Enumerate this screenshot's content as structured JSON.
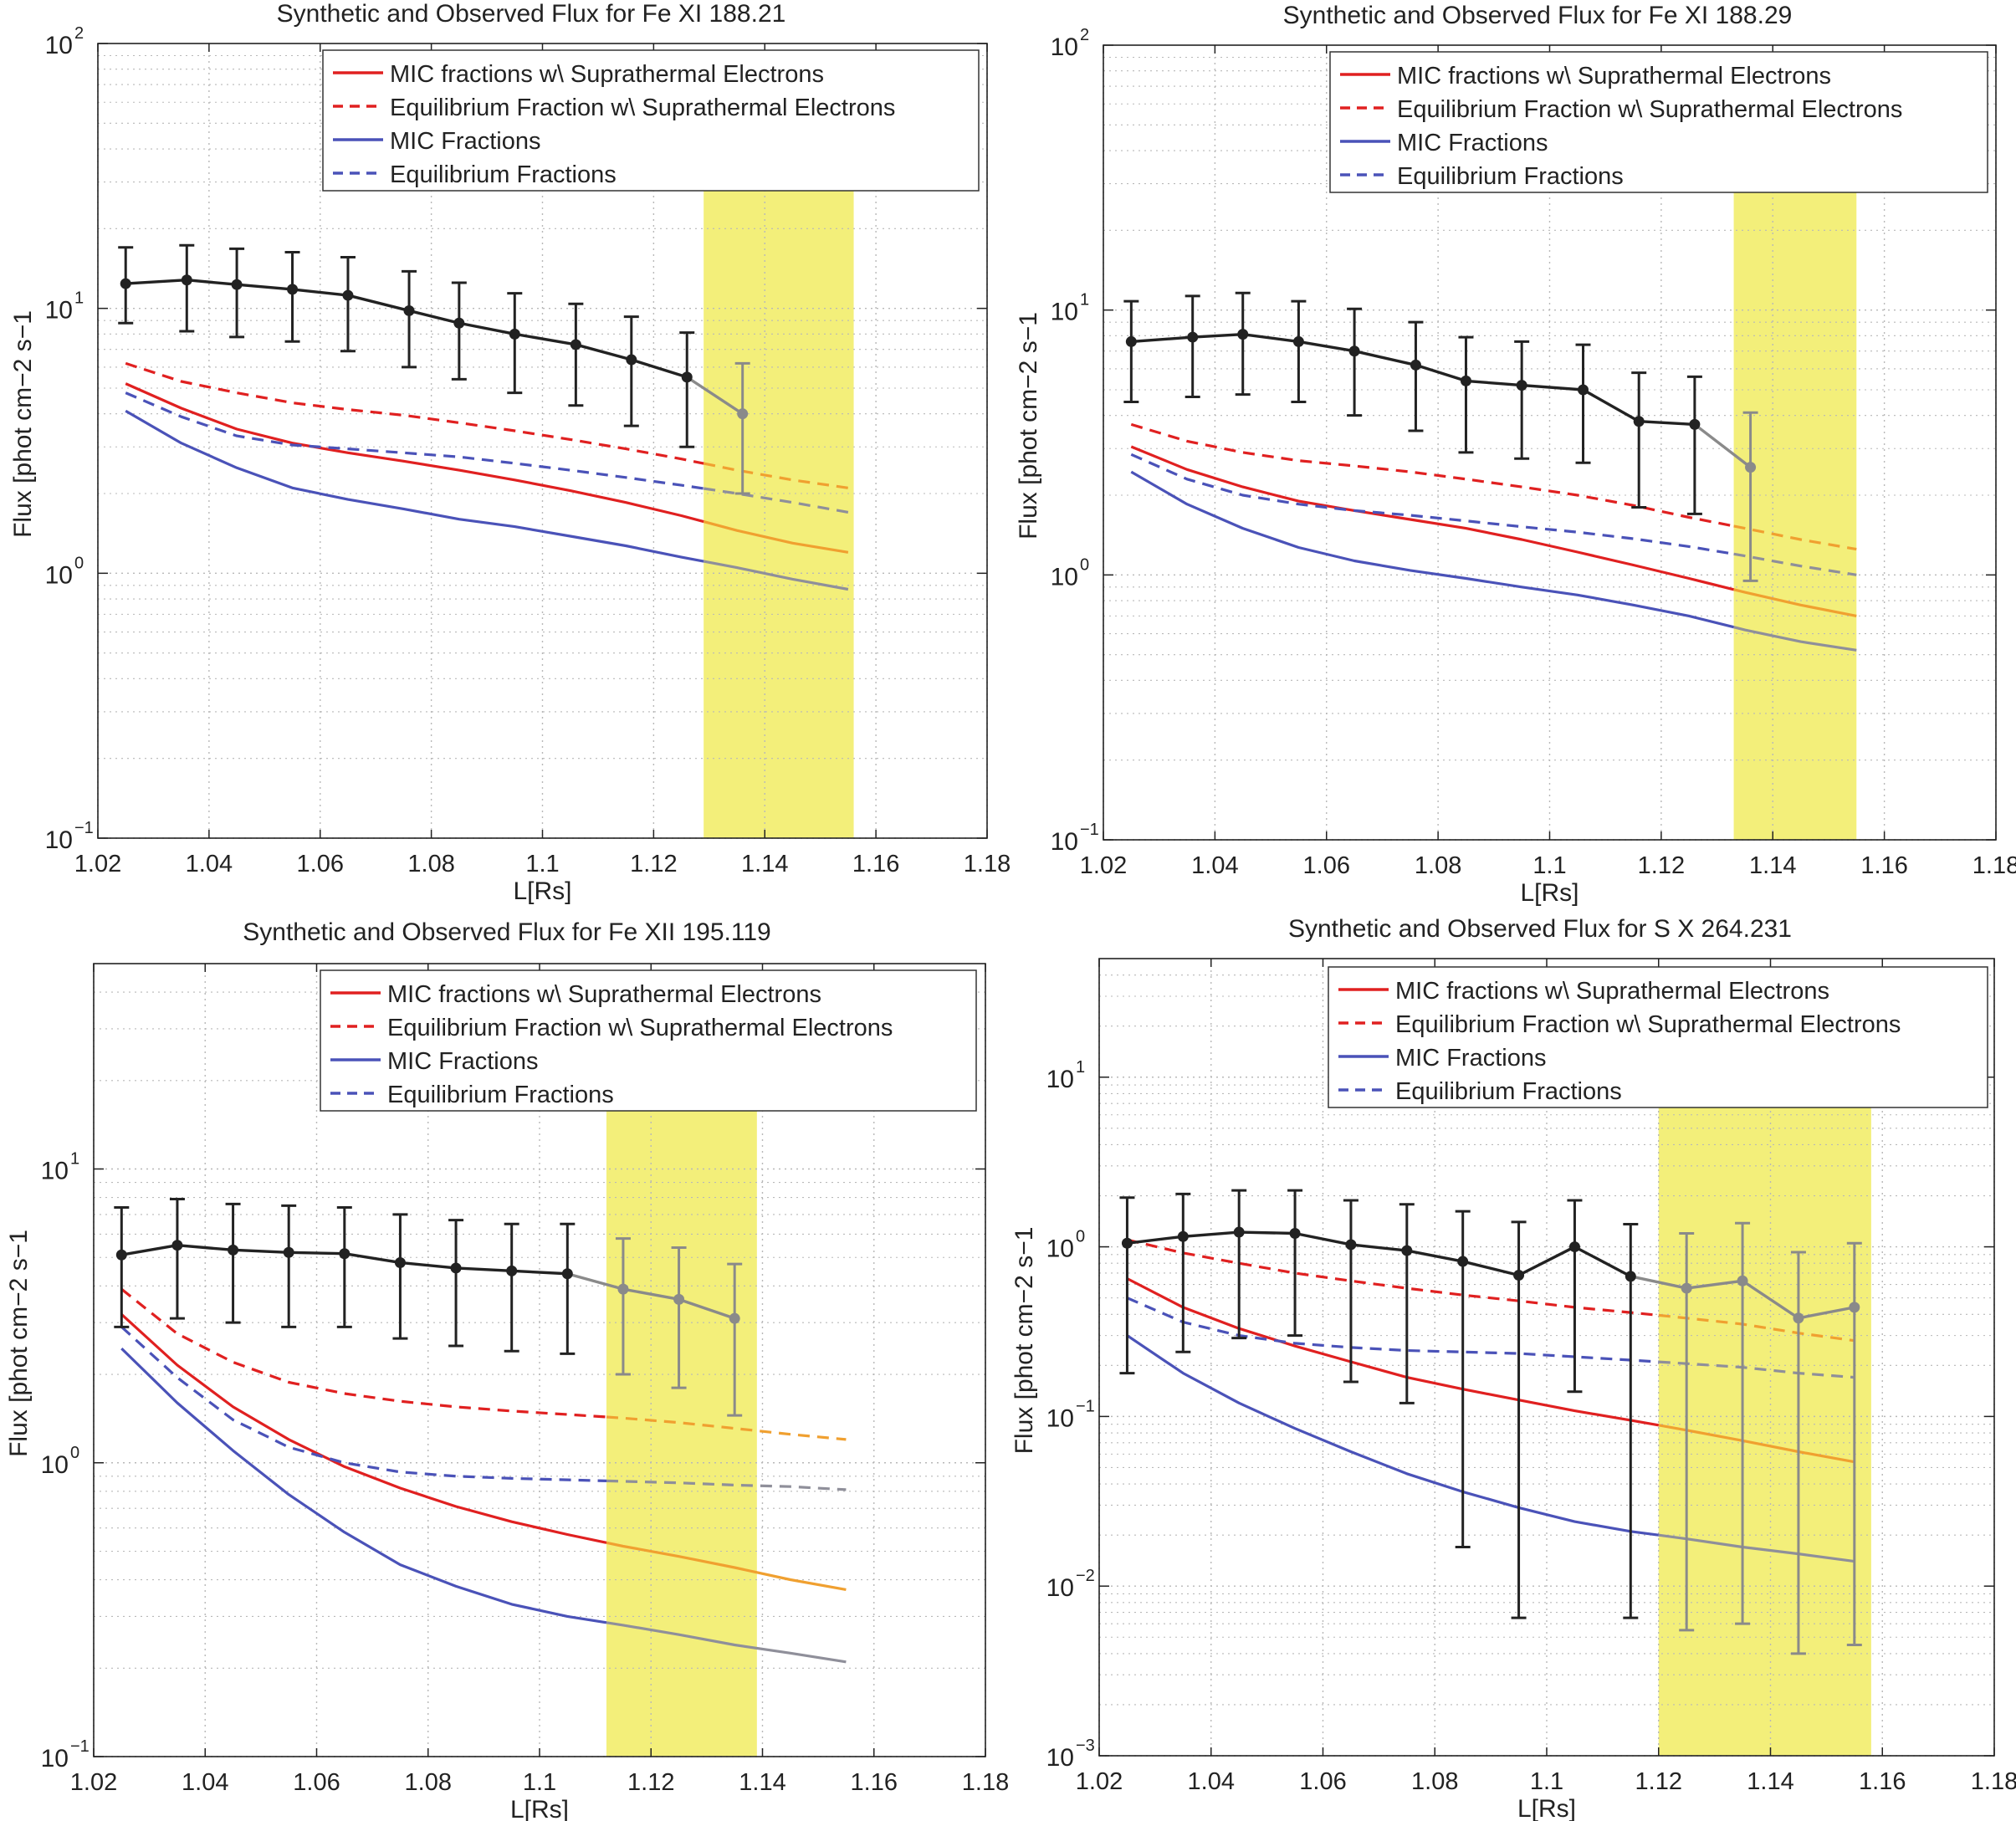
{
  "figure": {
    "legend": [
      {
        "label": "MIC fractions w\\ Suprathermal Electrons",
        "color": "#e02020",
        "dash": false
      },
      {
        "label": "Equilibrium Fraction w\\ Suprathermal Electrons",
        "color": "#e02020",
        "dash": true
      },
      {
        "label": "MIC Fractions",
        "color": "#4a52b8",
        "dash": false
      },
      {
        "label": "Equilibrium Fractions",
        "color": "#4a52b8",
        "dash": true
      }
    ],
    "colors": {
      "observed": "#222222",
      "observed_in_band": "#8a8a8a",
      "band": "#f3ef7a",
      "red_in_band": "#f0a030",
      "blue_in_band": "#8f8f9a",
      "grid": "#b8b8b8"
    }
  },
  "chart_data": [
    {
      "type": "line",
      "title": "Synthetic and Observed Flux for Fe XI 188.21",
      "xlabel": "L[Rs]",
      "ylabel": "Flux [phot cm−2 s−1",
      "yscale": "log",
      "xlim": [
        1.02,
        1.18
      ],
      "ylim": [
        0.1,
        100
      ],
      "xticks": [
        "1.02",
        "1.04",
        "1.06",
        "1.08",
        "1.1",
        "1.12",
        "1.14",
        "1.16",
        "1.18"
      ],
      "yticks": [
        {
          "base": "10",
          "exp": "−1",
          "value": 0.1
        },
        {
          "base": "10",
          "exp": "0",
          "value": 1
        },
        {
          "base": "10",
          "exp": "1",
          "value": 10
        },
        {
          "base": "10",
          "exp": "2",
          "value": 100
        }
      ],
      "highlight_band": [
        1.129,
        1.156
      ],
      "observed": {
        "x": [
          1.025,
          1.036,
          1.045,
          1.055,
          1.065,
          1.076,
          1.085,
          1.095,
          1.106,
          1.116,
          1.126,
          1.136
        ],
        "y": [
          12.4,
          12.8,
          12.3,
          11.8,
          11.2,
          9.8,
          8.8,
          8.0,
          7.3,
          6.4,
          5.5,
          4.0
        ],
        "lo": [
          8.8,
          8.2,
          7.8,
          7.5,
          6.9,
          6.0,
          5.4,
          4.8,
          4.3,
          3.6,
          3.0,
          2.0
        ],
        "hi": [
          17.0,
          17.3,
          16.8,
          16.3,
          15.6,
          13.8,
          12.5,
          11.4,
          10.4,
          9.3,
          8.1,
          6.2
        ]
      },
      "series": [
        {
          "name": "MIC fractions w\\ Suprathermal Electrons",
          "style": "solid",
          "color": "red",
          "x": [
            1.025,
            1.035,
            1.045,
            1.055,
            1.065,
            1.075,
            1.085,
            1.095,
            1.105,
            1.115,
            1.125,
            1.135,
            1.145,
            1.155
          ],
          "y": [
            5.2,
            4.2,
            3.5,
            3.1,
            2.85,
            2.65,
            2.45,
            2.25,
            2.05,
            1.85,
            1.65,
            1.45,
            1.3,
            1.2
          ]
        },
        {
          "name": "Equilibrium Fraction w\\ Suprathermal Electrons",
          "style": "dashed",
          "color": "red",
          "x": [
            1.025,
            1.035,
            1.045,
            1.055,
            1.065,
            1.075,
            1.085,
            1.095,
            1.105,
            1.115,
            1.125,
            1.135,
            1.145,
            1.155
          ],
          "y": [
            6.2,
            5.3,
            4.8,
            4.4,
            4.15,
            3.95,
            3.7,
            3.45,
            3.2,
            2.95,
            2.7,
            2.45,
            2.25,
            2.1
          ]
        },
        {
          "name": "MIC Fractions",
          "style": "solid",
          "color": "blue",
          "x": [
            1.025,
            1.035,
            1.045,
            1.055,
            1.065,
            1.075,
            1.085,
            1.095,
            1.105,
            1.115,
            1.125,
            1.135,
            1.145,
            1.155
          ],
          "y": [
            4.1,
            3.1,
            2.5,
            2.1,
            1.9,
            1.75,
            1.6,
            1.5,
            1.38,
            1.27,
            1.15,
            1.05,
            0.95,
            0.87
          ]
        },
        {
          "name": "Equilibrium Fractions",
          "style": "dashed",
          "color": "blue",
          "x": [
            1.025,
            1.035,
            1.045,
            1.055,
            1.065,
            1.075,
            1.085,
            1.095,
            1.105,
            1.115,
            1.125,
            1.135,
            1.145,
            1.155
          ],
          "y": [
            4.8,
            3.9,
            3.3,
            3.05,
            2.95,
            2.85,
            2.75,
            2.6,
            2.45,
            2.3,
            2.15,
            2.0,
            1.85,
            1.7
          ]
        }
      ]
    },
    {
      "type": "line",
      "title": "Synthetic and Observed Flux for Fe XI 188.29",
      "xlabel": "L[Rs]",
      "ylabel": "Flux [phot cm−2 s−1",
      "yscale": "log",
      "xlim": [
        1.02,
        1.18
      ],
      "ylim": [
        0.1,
        100
      ],
      "xticks": [
        "1.02",
        "1.04",
        "1.06",
        "1.08",
        "1.1",
        "1.12",
        "1.14",
        "1.16",
        "1.18"
      ],
      "yticks": [
        {
          "base": "10",
          "exp": "−1",
          "value": 0.1
        },
        {
          "base": "10",
          "exp": "0",
          "value": 1
        },
        {
          "base": "10",
          "exp": "1",
          "value": 10
        },
        {
          "base": "10",
          "exp": "2",
          "value": 100
        }
      ],
      "highlight_band": [
        1.133,
        1.155
      ],
      "observed": {
        "x": [
          1.025,
          1.036,
          1.045,
          1.055,
          1.065,
          1.076,
          1.085,
          1.095,
          1.106,
          1.116,
          1.126,
          1.136
        ],
        "y": [
          7.6,
          7.9,
          8.1,
          7.6,
          7.0,
          6.2,
          5.4,
          5.2,
          5.0,
          3.8,
          3.7,
          2.55
        ],
        "lo": [
          4.5,
          4.7,
          4.8,
          4.5,
          4.0,
          3.5,
          2.9,
          2.75,
          2.65,
          1.8,
          1.7,
          0.95
        ],
        "hi": [
          10.8,
          11.3,
          11.6,
          10.8,
          10.1,
          9.0,
          7.9,
          7.6,
          7.4,
          5.8,
          5.6,
          4.1
        ]
      },
      "series": [
        {
          "name": "MIC fractions w\\ Suprathermal Electrons",
          "style": "solid",
          "color": "red",
          "x": [
            1.025,
            1.035,
            1.045,
            1.055,
            1.065,
            1.075,
            1.085,
            1.095,
            1.105,
            1.115,
            1.125,
            1.135,
            1.145,
            1.155
          ],
          "y": [
            3.05,
            2.5,
            2.15,
            1.9,
            1.75,
            1.62,
            1.5,
            1.36,
            1.22,
            1.09,
            0.97,
            0.86,
            0.77,
            0.7
          ]
        },
        {
          "name": "Equilibrium Fraction w\\ Suprathermal Electrons",
          "style": "dashed",
          "color": "red",
          "x": [
            1.025,
            1.035,
            1.045,
            1.055,
            1.065,
            1.075,
            1.085,
            1.095,
            1.105,
            1.115,
            1.125,
            1.135,
            1.145,
            1.155
          ],
          "y": [
            3.7,
            3.2,
            2.9,
            2.7,
            2.58,
            2.45,
            2.3,
            2.15,
            2.0,
            1.83,
            1.65,
            1.5,
            1.36,
            1.25
          ]
        },
        {
          "name": "MIC Fractions",
          "style": "solid",
          "color": "blue",
          "x": [
            1.025,
            1.035,
            1.045,
            1.055,
            1.065,
            1.075,
            1.085,
            1.095,
            1.105,
            1.115,
            1.125,
            1.135,
            1.145,
            1.155
          ],
          "y": [
            2.45,
            1.85,
            1.5,
            1.27,
            1.13,
            1.04,
            0.97,
            0.9,
            0.84,
            0.77,
            0.7,
            0.62,
            0.56,
            0.52
          ]
        },
        {
          "name": "Equilibrium Fractions",
          "style": "dashed",
          "color": "blue",
          "x": [
            1.025,
            1.035,
            1.045,
            1.055,
            1.065,
            1.075,
            1.085,
            1.095,
            1.105,
            1.115,
            1.125,
            1.135,
            1.145,
            1.155
          ],
          "y": [
            2.85,
            2.3,
            2.0,
            1.85,
            1.75,
            1.68,
            1.6,
            1.52,
            1.45,
            1.37,
            1.28,
            1.18,
            1.08,
            1.0
          ]
        }
      ]
    },
    {
      "type": "line",
      "title": "Synthetic and Observed Flux for Fe XII 195.119",
      "xlabel": "L[Rs]",
      "ylabel": "Flux [phot cm−2 s−1",
      "yscale": "log",
      "xlim": [
        1.02,
        1.18
      ],
      "ylim": [
        0.1,
        50
      ],
      "xticks": [
        "1.02",
        "1.04",
        "1.06",
        "1.08",
        "1.1",
        "1.12",
        "1.14",
        "1.16",
        "1.18"
      ],
      "yticks": [
        {
          "base": "10",
          "exp": "−1",
          "value": 0.1
        },
        {
          "base": "10",
          "exp": "0",
          "value": 1
        },
        {
          "base": "10",
          "exp": "1",
          "value": 10
        }
      ],
      "highlight_band": [
        1.112,
        1.139
      ],
      "observed": {
        "x": [
          1.025,
          1.035,
          1.045,
          1.055,
          1.065,
          1.075,
          1.085,
          1.095,
          1.105,
          1.115,
          1.125,
          1.135
        ],
        "y": [
          5.1,
          5.5,
          5.3,
          5.2,
          5.15,
          4.8,
          4.6,
          4.5,
          4.4,
          3.9,
          3.6,
          3.1
        ],
        "lo": [
          2.9,
          3.1,
          3.0,
          2.9,
          2.9,
          2.65,
          2.5,
          2.4,
          2.35,
          2.0,
          1.8,
          1.45
        ],
        "hi": [
          7.4,
          7.9,
          7.6,
          7.5,
          7.4,
          7.0,
          6.7,
          6.5,
          6.5,
          5.8,
          5.4,
          4.75
        ]
      },
      "series": [
        {
          "name": "MIC fractions w\\ Suprathermal Electrons",
          "style": "solid",
          "color": "red",
          "x": [
            1.025,
            1.035,
            1.045,
            1.055,
            1.065,
            1.075,
            1.085,
            1.095,
            1.105,
            1.115,
            1.125,
            1.135,
            1.145,
            1.155
          ],
          "y": [
            3.2,
            2.15,
            1.55,
            1.2,
            0.97,
            0.82,
            0.71,
            0.63,
            0.57,
            0.52,
            0.48,
            0.44,
            0.4,
            0.37
          ]
        },
        {
          "name": "Equilibrium Fraction w\\ Suprathermal Electrons",
          "style": "dashed",
          "color": "red",
          "x": [
            1.025,
            1.035,
            1.045,
            1.055,
            1.065,
            1.075,
            1.085,
            1.095,
            1.105,
            1.115,
            1.125,
            1.135,
            1.145,
            1.155
          ],
          "y": [
            3.9,
            2.75,
            2.2,
            1.88,
            1.72,
            1.62,
            1.55,
            1.5,
            1.46,
            1.42,
            1.37,
            1.31,
            1.25,
            1.2
          ]
        },
        {
          "name": "MIC Fractions",
          "style": "solid",
          "color": "blue",
          "x": [
            1.025,
            1.035,
            1.045,
            1.055,
            1.065,
            1.075,
            1.085,
            1.095,
            1.105,
            1.115,
            1.125,
            1.135,
            1.145,
            1.155
          ],
          "y": [
            2.45,
            1.6,
            1.1,
            0.78,
            0.58,
            0.45,
            0.38,
            0.33,
            0.3,
            0.28,
            0.26,
            0.24,
            0.225,
            0.21
          ]
        },
        {
          "name": "Equilibrium Fractions",
          "style": "dashed",
          "color": "blue",
          "x": [
            1.025,
            1.035,
            1.045,
            1.055,
            1.065,
            1.075,
            1.085,
            1.095,
            1.105,
            1.115,
            1.125,
            1.135,
            1.145,
            1.155
          ],
          "y": [
            2.9,
            1.95,
            1.4,
            1.13,
            1.0,
            0.93,
            0.9,
            0.885,
            0.875,
            0.865,
            0.855,
            0.84,
            0.83,
            0.81
          ]
        }
      ]
    },
    {
      "type": "line",
      "title": "Synthetic and Observed Flux for S X 264.231",
      "xlabel": "L[Rs]",
      "ylabel": "Flux [phot cm−2 s−1",
      "yscale": "log",
      "xlim": [
        1.02,
        1.18
      ],
      "ylim": [
        0.001,
        50
      ],
      "xticks": [
        "1.02",
        "1.04",
        "1.06",
        "1.08",
        "1.1",
        "1.12",
        "1.14",
        "1.16",
        "1.18"
      ],
      "yticks": [
        {
          "base": "10",
          "exp": "−3",
          "value": 0.001
        },
        {
          "base": "10",
          "exp": "−2",
          "value": 0.01
        },
        {
          "base": "10",
          "exp": "−1",
          "value": 0.1
        },
        {
          "base": "10",
          "exp": "0",
          "value": 1
        },
        {
          "base": "10",
          "exp": "1",
          "value": 10
        }
      ],
      "highlight_band": [
        1.12,
        1.158
      ],
      "observed": {
        "x": [
          1.025,
          1.035,
          1.045,
          1.055,
          1.065,
          1.075,
          1.085,
          1.095,
          1.105,
          1.115,
          1.125,
          1.135,
          1.145,
          1.155
        ],
        "y": [
          1.05,
          1.15,
          1.22,
          1.2,
          1.03,
          0.95,
          0.82,
          0.68,
          1.0,
          0.67,
          0.57,
          0.63,
          0.38,
          0.44
        ],
        "lo": [
          0.18,
          0.24,
          0.29,
          0.3,
          0.16,
          0.12,
          0.017,
          0.0065,
          0.14,
          0.0065,
          0.0055,
          0.006,
          0.004,
          0.0045
        ],
        "hi": [
          1.95,
          2.05,
          2.15,
          2.15,
          1.88,
          1.78,
          1.62,
          1.4,
          1.88,
          1.36,
          1.2,
          1.38,
          0.93,
          1.05
        ]
      },
      "series": [
        {
          "name": "MIC fractions w\\ Suprathermal Electrons",
          "style": "solid",
          "color": "red",
          "x": [
            1.025,
            1.035,
            1.045,
            1.055,
            1.065,
            1.075,
            1.085,
            1.095,
            1.105,
            1.115,
            1.125,
            1.135,
            1.145,
            1.155
          ],
          "y": [
            0.65,
            0.44,
            0.33,
            0.26,
            0.21,
            0.17,
            0.145,
            0.125,
            0.108,
            0.095,
            0.083,
            0.072,
            0.062,
            0.054
          ]
        },
        {
          "name": "Equilibrium Fraction w\\ Suprathermal Electrons",
          "style": "dashed",
          "color": "red",
          "x": [
            1.025,
            1.035,
            1.045,
            1.055,
            1.065,
            1.075,
            1.085,
            1.095,
            1.105,
            1.115,
            1.125,
            1.135,
            1.145,
            1.155
          ],
          "y": [
            1.1,
            0.92,
            0.8,
            0.7,
            0.63,
            0.57,
            0.52,
            0.48,
            0.44,
            0.41,
            0.38,
            0.35,
            0.31,
            0.28
          ]
        },
        {
          "name": "MIC Fractions",
          "style": "solid",
          "color": "blue",
          "x": [
            1.025,
            1.035,
            1.045,
            1.055,
            1.065,
            1.075,
            1.085,
            1.095,
            1.105,
            1.115,
            1.125,
            1.135,
            1.145,
            1.155
          ],
          "y": [
            0.3,
            0.18,
            0.12,
            0.085,
            0.062,
            0.046,
            0.036,
            0.029,
            0.024,
            0.021,
            0.019,
            0.017,
            0.0155,
            0.014
          ]
        },
        {
          "name": "Equilibrium Fractions",
          "style": "dashed",
          "color": "blue",
          "x": [
            1.025,
            1.035,
            1.045,
            1.055,
            1.065,
            1.075,
            1.085,
            1.095,
            1.105,
            1.115,
            1.125,
            1.135,
            1.145,
            1.155
          ],
          "y": [
            0.5,
            0.36,
            0.3,
            0.27,
            0.255,
            0.245,
            0.24,
            0.235,
            0.225,
            0.215,
            0.205,
            0.195,
            0.18,
            0.17
          ]
        }
      ]
    }
  ]
}
